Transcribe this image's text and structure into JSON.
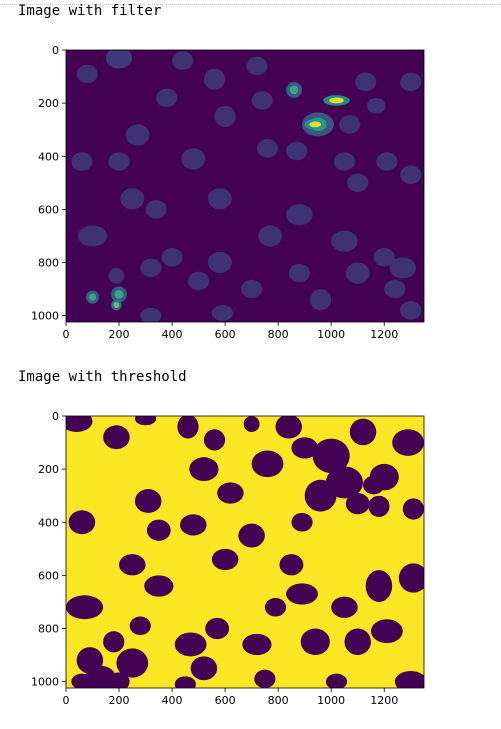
{
  "output": {
    "captions": {
      "filter": "Image with filter",
      "threshold": "Image with threshold"
    },
    "plots": [
      {
        "kind": "image-filter",
        "colormap": "viridis",
        "background_color": "#440154",
        "cell_color": "#3b4f8a",
        "bright_colors": [
          "#fde725",
          "#35b779",
          "#21918c"
        ]
      },
      {
        "kind": "image-threshold",
        "colormap": "viridis",
        "background_color": "#fde725",
        "cell_color": "#440154"
      }
    ]
  },
  "chart_data": [
    {
      "type": "heatmap",
      "title": "",
      "xlabel": "",
      "ylabel": "",
      "xlim": [
        0,
        1350
      ],
      "ylim": [
        1024,
        0
      ],
      "x_ticks": [
        "0",
        "200",
        "400",
        "600",
        "800",
        "1000",
        "1200"
      ],
      "y_ticks": [
        "0",
        "200",
        "400",
        "600",
        "800",
        "1000"
      ],
      "colormap": "viridis",
      "grid": false,
      "legend": "none"
    },
    {
      "type": "heatmap",
      "title": "",
      "xlabel": "",
      "ylabel": "",
      "xlim": [
        0,
        1350
      ],
      "ylim": [
        1024,
        0
      ],
      "x_ticks": [
        "0",
        "200",
        "400",
        "600",
        "800",
        "1000",
        "1200"
      ],
      "y_ticks": [
        "0",
        "200",
        "400",
        "600",
        "800",
        "1000"
      ],
      "colormap": "viridis",
      "grid": false,
      "legend": "none"
    }
  ]
}
